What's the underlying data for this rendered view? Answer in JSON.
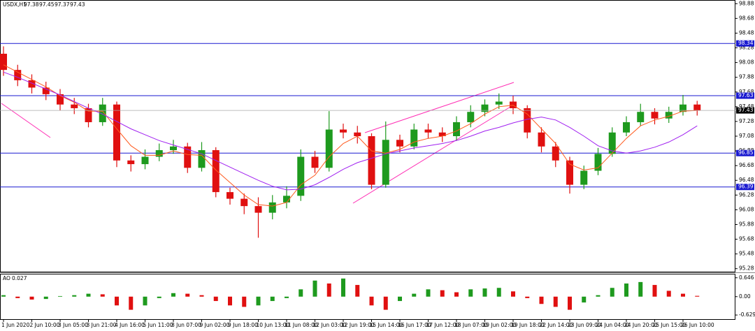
{
  "chart_data": {
    "type": "candlestick",
    "title": "USDX,H1",
    "header_values": [
      97.38,
      97.45,
      97.37,
      97.43
    ],
    "categories": [
      "1 Jun 2020",
      null,
      "2 Jun 10:00",
      null,
      "3 Jun 05:00",
      null,
      "3 Jun 21:00",
      null,
      "4 Jun 16:00",
      null,
      "5 Jun 11:00",
      null,
      "8 Jun 07:00",
      null,
      "9 Jun 02:00",
      null,
      "9 Jun 18:00",
      null,
      "10 Jun 13:00",
      null,
      "11 Jun 08:00",
      null,
      "12 Jun 03:00",
      null,
      "12 Jun 19:00",
      null,
      "15 Jun 14:00",
      null,
      "16 Jun 17:00",
      null,
      "17 Jun 12:00",
      null,
      "18 Jun 07:00",
      null,
      "19 Jun 02:00",
      null,
      "19 Jun 18:00",
      null,
      "22 Jun 14:00",
      null,
      "23 Jun 09:00",
      null,
      "24 Jun 04:00",
      null,
      "24 Jun 20:00",
      null,
      "25 Jun 15:00",
      null,
      "26 Jun 10:00",
      null
    ],
    "open": [
      98.2,
      97.98,
      97.84,
      97.74,
      97.65,
      97.51,
      97.46,
      97.27,
      97.51,
      96.75,
      96.7,
      96.8,
      96.89,
      96.94,
      96.65,
      96.89,
      96.32,
      96.23,
      96.13,
      96.04,
      96.18,
      96.27,
      96.8,
      96.65,
      97.17,
      97.13,
      97.08,
      96.42,
      97.03,
      96.94,
      97.17,
      97.13,
      97.08,
      97.27,
      97.41,
      97.51,
      97.55,
      97.46,
      97.13,
      96.94,
      96.75,
      96.42,
      96.61,
      96.84,
      97.13,
      97.27,
      97.41,
      97.32,
      97.41,
      97.51
    ],
    "high": [
      98.3,
      98.05,
      97.92,
      97.82,
      97.72,
      97.6,
      97.52,
      97.6,
      97.55,
      96.82,
      96.9,
      96.98,
      97.03,
      96.99,
      97.0,
      96.93,
      96.38,
      96.3,
      96.25,
      96.28,
      96.4,
      96.9,
      96.88,
      97.42,
      97.25,
      97.22,
      97.12,
      97.28,
      97.1,
      97.25,
      97.25,
      97.2,
      97.35,
      97.5,
      97.58,
      97.66,
      97.63,
      97.5,
      97.2,
      97.0,
      96.8,
      96.68,
      96.92,
      97.2,
      97.35,
      97.52,
      97.46,
      97.48,
      97.64,
      97.56
    ],
    "low": [
      97.9,
      97.76,
      97.66,
      97.57,
      97.43,
      97.38,
      97.2,
      97.22,
      96.66,
      96.6,
      96.63,
      96.74,
      96.84,
      96.58,
      96.6,
      96.25,
      96.15,
      96.02,
      95.7,
      95.95,
      96.1,
      96.2,
      96.58,
      96.6,
      97.05,
      96.98,
      96.36,
      96.38,
      96.86,
      96.9,
      97.05,
      97.0,
      97.02,
      97.2,
      97.35,
      97.45,
      97.38,
      97.05,
      96.86,
      96.66,
      96.3,
      96.36,
      96.55,
      96.8,
      97.08,
      97.22,
      97.24,
      97.26,
      97.36,
      97.36
    ],
    "close": [
      97.98,
      97.84,
      97.74,
      97.65,
      97.51,
      97.46,
      97.27,
      97.51,
      96.75,
      96.7,
      96.8,
      96.89,
      96.94,
      96.65,
      96.89,
      96.32,
      96.23,
      96.13,
      96.04,
      96.18,
      96.27,
      96.8,
      96.65,
      97.17,
      97.13,
      97.08,
      96.42,
      97.03,
      96.94,
      97.17,
      97.13,
      97.08,
      97.27,
      97.41,
      97.51,
      97.55,
      97.46,
      97.13,
      96.94,
      96.75,
      96.42,
      96.61,
      96.84,
      97.13,
      97.27,
      97.41,
      97.32,
      97.41,
      97.51,
      97.43
    ],
    "bull_color": "#1e9a1e",
    "bear_color": "#e01010",
    "overlays": [
      {
        "color": "#ff5a1e",
        "values": [
          98.05,
          97.95,
          97.85,
          97.75,
          97.63,
          97.54,
          97.42,
          97.42,
          97.18,
          96.95,
          96.82,
          96.82,
          96.88,
          96.83,
          96.82,
          96.62,
          96.45,
          96.28,
          96.15,
          96.13,
          96.18,
          96.42,
          96.55,
          96.8,
          96.98,
          97.08,
          96.88,
          96.85,
          96.9,
          97.0,
          97.05,
          97.08,
          97.15,
          97.25,
          97.38,
          97.48,
          97.5,
          97.38,
          97.18,
          96.98,
          96.7,
          96.62,
          96.65,
          96.85,
          97.05,
          97.22,
          97.3,
          97.35,
          97.42,
          97.43
        ]
      },
      {
        "color": "#a020f0",
        "values": [
          97.95,
          97.88,
          97.8,
          97.72,
          97.64,
          97.55,
          97.46,
          97.38,
          97.28,
          97.18,
          97.1,
          97.02,
          96.96,
          96.9,
          96.84,
          96.75,
          96.66,
          96.57,
          96.48,
          96.4,
          96.35,
          96.36,
          96.42,
          96.52,
          96.63,
          96.72,
          96.78,
          96.84,
          96.88,
          96.92,
          96.95,
          96.98,
          97.02,
          97.08,
          97.15,
          97.2,
          97.26,
          97.31,
          97.34,
          97.3,
          97.2,
          97.08,
          96.95,
          96.88,
          96.85,
          96.88,
          96.93,
          97.0,
          97.1,
          97.22
        ]
      }
    ],
    "ylim": [
      95.23,
      98.93
    ],
    "yticks": [
      98.88,
      98.68,
      98.48,
      98.28,
      98.08,
      97.88,
      97.68,
      97.48,
      97.28,
      97.08,
      96.88,
      96.68,
      96.48,
      96.28,
      96.08,
      95.88,
      95.68,
      95.48,
      95.28
    ],
    "levels": [
      {
        "value": 98.34
      },
      {
        "value": 97.63
      },
      {
        "value": 96.85
      },
      {
        "value": 96.39
      }
    ],
    "level_color": "#1a1ad0",
    "current_price": 97.43,
    "indicator": {
      "title": "AO",
      "value": 0.027,
      "values": [
        0.05,
        -0.05,
        -0.1,
        -0.08,
        0.02,
        0.05,
        0.1,
        0.08,
        -0.3,
        -0.45,
        -0.3,
        -0.05,
        0.12,
        0.1,
        0.05,
        -0.15,
        -0.3,
        -0.35,
        -0.3,
        -0.15,
        -0.05,
        0.25,
        0.55,
        0.45,
        0.62,
        0.4,
        -0.3,
        -0.45,
        -0.15,
        0.1,
        0.25,
        0.22,
        0.15,
        0.25,
        0.28,
        0.3,
        0.18,
        -0.05,
        -0.25,
        -0.35,
        -0.45,
        -0.2,
        0.05,
        0.3,
        0.45,
        0.5,
        0.4,
        0.2,
        0.1,
        0.027
      ],
      "ylim": [
        -0.77,
        0.76
      ],
      "yticks": [
        0.646,
        {
          "value": 0,
          "label": "0.00"
        },
        -0.629
      ],
      "up_color": "#1e9a1e",
      "down_color": "#e01010"
    }
  }
}
